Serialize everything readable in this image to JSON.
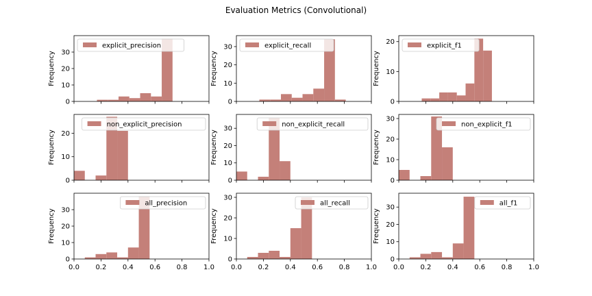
{
  "figure": {
    "title": "Evaluation Metrics (Convolutional)",
    "bar_color": "#c48079",
    "edge_color": "#000000"
  },
  "chart_data": [
    {
      "type": "bar",
      "legend": "explicit_precision",
      "legend_loc": "upper-left",
      "ylabel": "Frequency",
      "x_range": [
        0,
        1
      ],
      "ylim": [
        0,
        40
      ],
      "y_ticks": [
        0,
        10,
        20,
        30
      ],
      "bin_edges": [
        0.17,
        0.25,
        0.33,
        0.41,
        0.49,
        0.57,
        0.65,
        0.73
      ],
      "bin_width": 0.08,
      "counts": [
        1,
        1,
        3,
        2,
        5,
        3,
        38
      ]
    },
    {
      "type": "bar",
      "legend": "explicit_recall",
      "legend_loc": "upper-left",
      "ylabel": "Frequency",
      "x_range": [
        0,
        1
      ],
      "ylim": [
        0,
        36
      ],
      "y_ticks": [
        0,
        10,
        20,
        30
      ],
      "bin_edges": [
        0.17,
        0.25,
        0.33,
        0.41,
        0.49,
        0.57,
        0.65,
        0.73
      ],
      "bin_width": 0.08,
      "counts": [
        1,
        1,
        4,
        2,
        4,
        7,
        34,
        1
      ]
    },
    {
      "type": "bar",
      "legend": "explicit_f1",
      "legend_loc": "upper-left",
      "ylabel": "Frequency",
      "x_range": [
        0,
        1
      ],
      "ylim": [
        0,
        22
      ],
      "y_ticks": [
        0,
        10,
        20
      ],
      "bin_edges": [
        0.17,
        0.235,
        0.3,
        0.365,
        0.43,
        0.495,
        0.56,
        0.625,
        0.69
      ],
      "bin_width": 0.065,
      "counts": [
        1,
        1,
        3,
        3,
        2,
        6,
        21,
        17
      ]
    },
    {
      "type": "bar",
      "legend": "non_explicit_precision",
      "legend_loc": "upper-right",
      "ylabel": "Frequency",
      "x_range": [
        0,
        1
      ],
      "ylim": [
        0,
        28
      ],
      "y_ticks": [
        0,
        10,
        20
      ],
      "bin_edges": [
        0.0,
        0.16,
        0.24,
        0.32
      ],
      "bin_width": [
        0.08,
        0.08,
        0.08,
        0.08
      ],
      "counts": [
        4,
        2,
        27,
        21
      ]
    },
    {
      "type": "bar",
      "legend": "non_explicit_recall",
      "legend_loc": "upper-right",
      "ylabel": "Frequency",
      "x_range": [
        0,
        1
      ],
      "ylim": [
        0,
        38
      ],
      "y_ticks": [
        0,
        10,
        20,
        30
      ],
      "bin_edges": [
        0.0,
        0.16,
        0.24,
        0.32
      ],
      "bin_width": 0.08,
      "counts": [
        5,
        2,
        36,
        11
      ]
    },
    {
      "type": "bar",
      "legend": "non_explicit_f1",
      "legend_loc": "upper-right",
      "ylabel": "Frequency",
      "x_range": [
        0,
        1
      ],
      "ylim": [
        0,
        32
      ],
      "y_ticks": [
        0,
        10,
        20,
        30
      ],
      "bin_edges": [
        0.0,
        0.16,
        0.24,
        0.32
      ],
      "bin_width": 0.08,
      "counts": [
        5,
        2,
        31,
        16
      ]
    },
    {
      "type": "bar",
      "legend": "all_precision",
      "legend_loc": "upper-right",
      "ylabel": "Frequency",
      "x_range": [
        0,
        1
      ],
      "ylim": [
        0,
        40
      ],
      "y_ticks": [
        0,
        10,
        20,
        30
      ],
      "bin_edges": [
        0.08,
        0.16,
        0.24,
        0.32,
        0.4,
        0.48
      ],
      "bin_width": 0.08,
      "counts": [
        1,
        3,
        4,
        1,
        7,
        38
      ]
    },
    {
      "type": "bar",
      "legend": "all_recall",
      "legend_loc": "upper-right",
      "ylabel": "Frequency",
      "x_range": [
        0,
        1
      ],
      "ylim": [
        0,
        32
      ],
      "y_ticks": [
        0,
        10,
        20,
        30
      ],
      "bin_edges": [
        0.08,
        0.16,
        0.24,
        0.32,
        0.4,
        0.48
      ],
      "bin_width": 0.08,
      "counts": [
        1,
        3,
        4,
        1,
        15,
        30
      ]
    },
    {
      "type": "bar",
      "legend": "all_f1",
      "legend_loc": "upper-right",
      "ylabel": "Frequency",
      "x_range": [
        0,
        1
      ],
      "ylim": [
        0,
        38
      ],
      "y_ticks": [
        0,
        10,
        20,
        30
      ],
      "bin_edges": [
        0.08,
        0.16,
        0.24,
        0.32,
        0.4,
        0.48
      ],
      "bin_width": 0.08,
      "counts": [
        1,
        3,
        4,
        1,
        9,
        36
      ]
    }
  ],
  "x_tick_labels": [
    "0.0",
    "0.2",
    "0.4",
    "0.6",
    "0.8",
    "1.0"
  ],
  "x_ticks": [
    0,
    0.2,
    0.4,
    0.6,
    0.8,
    1.0
  ]
}
